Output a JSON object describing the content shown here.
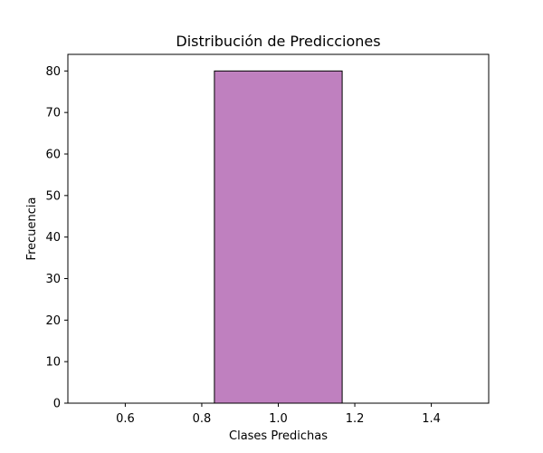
{
  "chart_data": {
    "type": "bar",
    "title": "Distribución de Predicciones",
    "xlabel": "Clases Predichas",
    "ylabel": "Frecuencia",
    "xlim": [
      0.45,
      1.55
    ],
    "ylim": [
      0,
      84
    ],
    "x_ticks": [
      0.6,
      0.8,
      1.0,
      1.2,
      1.4
    ],
    "x_tick_labels": [
      "0.6",
      "0.8",
      "1.0",
      "1.2",
      "1.4"
    ],
    "y_ticks": [
      0,
      10,
      20,
      30,
      40,
      50,
      60,
      70,
      80
    ],
    "y_tick_labels": [
      "0",
      "10",
      "20",
      "30",
      "40",
      "50",
      "60",
      "70",
      "80"
    ],
    "bins": [
      {
        "start": 0.5,
        "end": 0.833,
        "value": 0
      },
      {
        "start": 0.833,
        "end": 1.167,
        "value": 80
      },
      {
        "start": 1.167,
        "end": 1.5,
        "value": 0
      }
    ],
    "bar_color": "#bf80bf",
    "edge_color": "#000000",
    "grid": false,
    "legend": "none"
  }
}
